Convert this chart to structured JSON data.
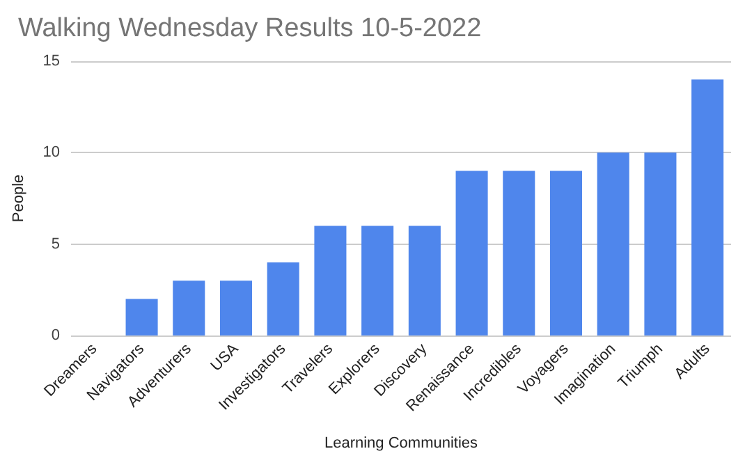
{
  "chart_data": {
    "type": "bar",
    "title": "Walking Wednesday Results 10-5-2022",
    "xlabel": "Learning Communities",
    "ylabel": "People",
    "categories": [
      "Dreamers",
      "Navigators",
      "Adventurers",
      "USA",
      "Investigators",
      "Travelers",
      "Explorers",
      "Discovery",
      "Renaissance",
      "Incredibles",
      "Voyagers",
      "Imagination",
      "Triumph",
      "Adults"
    ],
    "values": [
      0,
      2,
      3,
      3,
      4,
      6,
      6,
      6,
      9,
      9,
      9,
      10,
      10,
      14
    ],
    "color": "#4f86ec",
    "ylim": [
      0,
      15
    ],
    "yticks": [
      0,
      5,
      10,
      15
    ],
    "grid": "y"
  }
}
